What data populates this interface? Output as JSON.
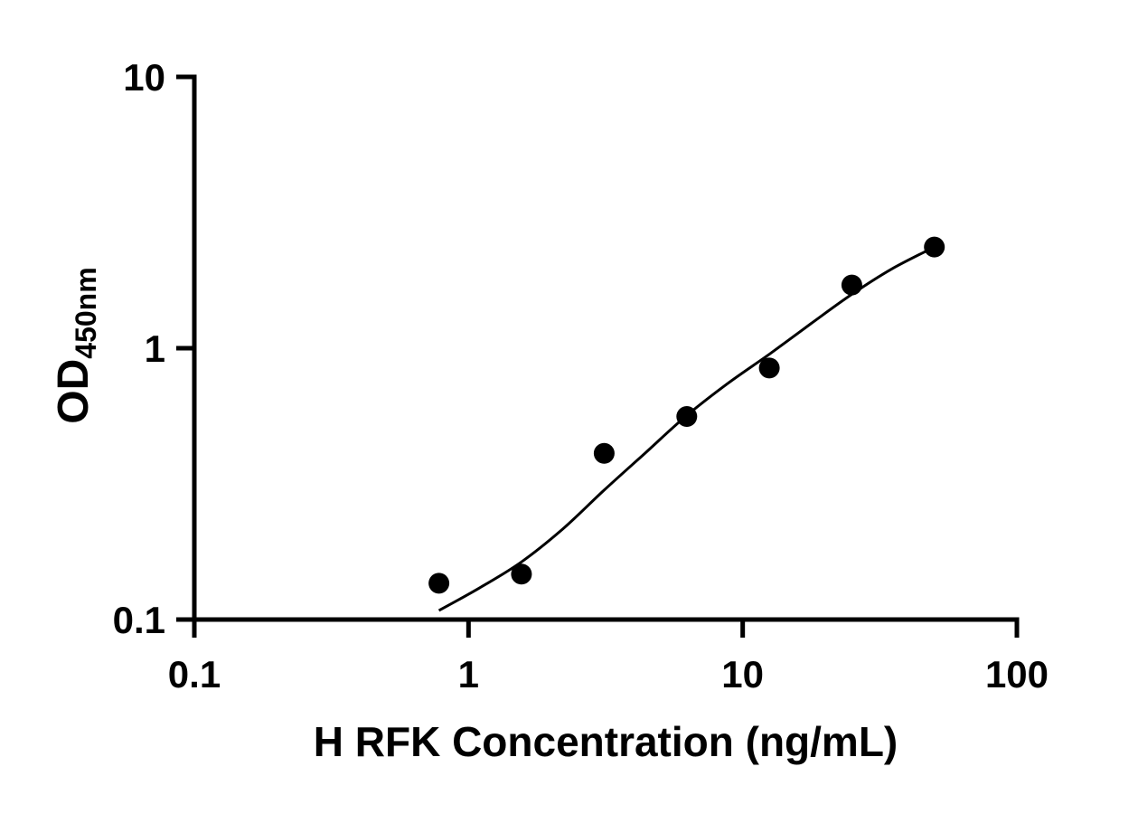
{
  "chart_data": {
    "type": "scatter",
    "title": "",
    "xlabel": "H RFK Concentration (ng/mL)",
    "ylabel_main": "OD",
    "ylabel_sub": "450nm",
    "x_scale": "log",
    "y_scale": "log",
    "xlim": [
      0.1,
      100
    ],
    "ylim": [
      0.1,
      10
    ],
    "x_ticks": [
      0.1,
      1,
      10,
      100
    ],
    "x_tick_labels": [
      "0.1",
      "1",
      "10",
      "100"
    ],
    "y_ticks": [
      10,
      1,
      0.1
    ],
    "y_tick_labels": [
      "10",
      "1",
      "0.1"
    ],
    "grid": false,
    "legend": null,
    "axis_color": "#000000",
    "marker_color": "#000000",
    "line_color": "#000000",
    "background_color": "#ffffff",
    "points": [
      {
        "x": 0.78,
        "y": 0.136
      },
      {
        "x": 1.56,
        "y": 0.147
      },
      {
        "x": 3.125,
        "y": 0.41
      },
      {
        "x": 6.25,
        "y": 0.56
      },
      {
        "x": 12.5,
        "y": 0.845
      },
      {
        "x": 25,
        "y": 1.71
      },
      {
        "x": 50,
        "y": 2.36
      }
    ],
    "fit_curve": [
      {
        "x": 0.78,
        "y": 0.108
      },
      {
        "x": 1.1,
        "y": 0.131
      },
      {
        "x": 1.56,
        "y": 0.163
      },
      {
        "x": 2.2,
        "y": 0.215
      },
      {
        "x": 3.125,
        "y": 0.3
      },
      {
        "x": 4.4,
        "y": 0.41
      },
      {
        "x": 6.25,
        "y": 0.565
      },
      {
        "x": 8.8,
        "y": 0.74
      },
      {
        "x": 12.5,
        "y": 0.95
      },
      {
        "x": 17.7,
        "y": 1.23
      },
      {
        "x": 25,
        "y": 1.58
      },
      {
        "x": 35,
        "y": 1.96
      },
      {
        "x": 50,
        "y": 2.36
      }
    ]
  }
}
